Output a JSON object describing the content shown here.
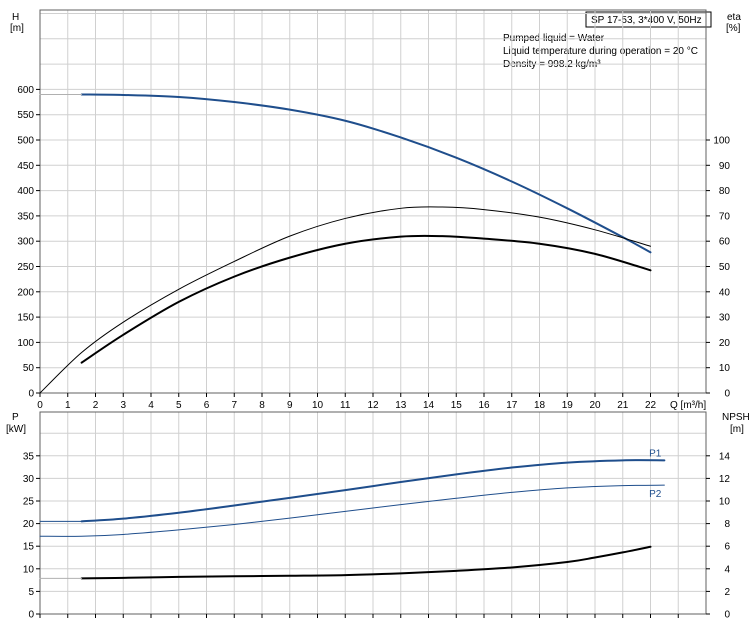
{
  "chart_data": [
    {
      "type": "line",
      "box_title": "SP 17-53, 3*400 V, 50Hz",
      "notes": [
        "Pumped liquid = Water",
        "Liquid temperature during operation = 20 °C",
        "Density = 998.2 kg/m³"
      ],
      "left_axis": {
        "label_line1": "H",
        "label_line2": "[m]",
        "range": [
          0,
          650
        ],
        "ticks": [
          0,
          50,
          100,
          150,
          200,
          250,
          300,
          350,
          400,
          450,
          500,
          550,
          600
        ]
      },
      "right_axis": {
        "label_line1": "eta",
        "label_line2": "[%]",
        "range": [
          0,
          130
        ],
        "ticks": [
          0,
          10,
          20,
          30,
          40,
          50,
          60,
          70,
          80,
          90,
          100
        ]
      },
      "x_axis": {
        "label": "Q [m³/h]",
        "range": [
          0,
          23.5
        ],
        "ticks": [
          0,
          1,
          2,
          3,
          4,
          5,
          6,
          7,
          8,
          9,
          10,
          11,
          12,
          13,
          14,
          15,
          16,
          17,
          18,
          19,
          20,
          21,
          22
        ]
      },
      "series": [
        {
          "axis": "left",
          "color": "#1f4e8c",
          "width": 2,
          "x": [
            1.5,
            3,
            5,
            7,
            9,
            11,
            13,
            15,
            17,
            19,
            21,
            22
          ],
          "y": [
            590,
            589,
            585,
            575,
            560,
            538,
            505,
            465,
            418,
            365,
            308,
            278
          ]
        },
        {
          "axis": "left",
          "color": "#b0b0b0",
          "width": 1,
          "x": [
            0,
            1.5
          ],
          "y": [
            590,
            590
          ]
        },
        {
          "axis": "right",
          "color": "#000000",
          "width": 1,
          "x": [
            0,
            1.5,
            3,
            5,
            7,
            9,
            11,
            13,
            14.5,
            16,
            18,
            20,
            22
          ],
          "y": [
            0,
            16,
            28,
            41,
            52,
            62,
            69,
            73,
            73.5,
            72.5,
            69.5,
            64.5,
            58
          ]
        },
        {
          "axis": "right",
          "color": "#000000",
          "width": 2,
          "x": [
            1.5,
            3,
            5,
            7,
            9,
            11,
            13,
            14.5,
            16,
            18,
            20,
            22
          ],
          "y": [
            12,
            23,
            36,
            46,
            53.5,
            59,
            61.8,
            62,
            61,
            59,
            55,
            48.5
          ]
        }
      ]
    },
    {
      "type": "line",
      "left_axis": {
        "label_line1": "P",
        "label_line2": "[kW]",
        "range": [
          0,
          40
        ],
        "ticks": [
          0,
          5,
          10,
          15,
          20,
          25,
          30,
          35
        ]
      },
      "right_axis": {
        "label_line1": "NPSH",
        "label_line2": "[m]",
        "range": [
          0,
          16
        ],
        "ticks": [
          0,
          2,
          4,
          6,
          8,
          10,
          12,
          14
        ]
      },
      "x_axis": {
        "range": [
          0,
          23.5
        ]
      },
      "series": [
        {
          "name": "P1",
          "axis": "left",
          "color": "#1f4e8c",
          "width": 2,
          "x": [
            1.5,
            3,
            5,
            7,
            9,
            11,
            13,
            15,
            17,
            19,
            21,
            22.5
          ],
          "y": [
            20.5,
            21.1,
            22.4,
            24,
            25.7,
            27.4,
            29.2,
            30.9,
            32.4,
            33.5,
            34,
            34
          ]
        },
        {
          "axis": "left",
          "color": "#1f4e8c",
          "width": 1,
          "x": [
            0,
            1.5
          ],
          "y": [
            20.5,
            20.5
          ]
        },
        {
          "name": "P2",
          "axis": "left",
          "color": "#1f4e8c",
          "width": 1,
          "x": [
            0,
            1.5,
            3,
            5,
            7,
            9,
            11,
            13,
            15,
            17,
            19,
            21,
            22.5
          ],
          "y": [
            17.2,
            17.2,
            17.6,
            18.6,
            19.8,
            21.2,
            22.7,
            24.2,
            25.6,
            26.9,
            27.9,
            28.4,
            28.5
          ]
        },
        {
          "axis": "right",
          "color": "#000000",
          "width": 2,
          "x": [
            1.5,
            3,
            5,
            7,
            9,
            11,
            13,
            15,
            17,
            19,
            20,
            21,
            22
          ],
          "y": [
            3.15,
            3.2,
            3.28,
            3.34,
            3.38,
            3.44,
            3.6,
            3.82,
            4.12,
            4.6,
            5.0,
            5.45,
            5.95
          ]
        },
        {
          "axis": "right",
          "color": "#b0b0b0",
          "width": 1,
          "x": [
            0,
            1.5
          ],
          "y": [
            3.15,
            3.15
          ]
        }
      ]
    }
  ]
}
